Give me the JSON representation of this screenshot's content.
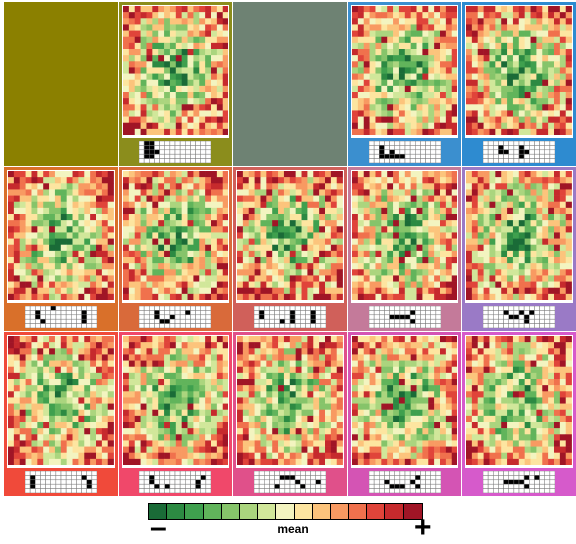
{
  "chart_data": {
    "type": "heatmap",
    "grid_rows": 3,
    "grid_cols": 5,
    "panels": [
      {
        "row": 0,
        "col": 0,
        "empty": true,
        "color": "#8b8000"
      },
      {
        "row": 0,
        "col": 1,
        "empty": false,
        "color": "#8b8d1c",
        "seed": 11,
        "selector": [
          [
            0,
            1
          ],
          [
            0,
            2
          ],
          [
            1,
            1
          ],
          [
            1,
            2
          ],
          [
            2,
            1
          ],
          [
            2,
            2
          ],
          [
            3,
            1
          ],
          [
            3,
            2
          ],
          [
            2,
            3
          ]
        ]
      },
      {
        "row": 0,
        "col": 2,
        "empty": true,
        "color": "#6e8273"
      },
      {
        "row": 0,
        "col": 3,
        "empty": false,
        "color": "#3b8fcf",
        "seed": 23,
        "selector": [
          [
            1,
            2
          ],
          [
            2,
            2
          ],
          [
            3,
            2
          ],
          [
            3,
            3
          ],
          [
            3,
            4
          ],
          [
            3,
            5
          ],
          [
            3,
            6
          ],
          [
            2,
            4
          ]
        ]
      },
      {
        "row": 0,
        "col": 4,
        "empty": false,
        "color": "#2e8bd0",
        "seed": 37,
        "selector": [
          [
            1,
            3
          ],
          [
            2,
            3
          ],
          [
            2,
            4
          ],
          [
            1,
            7
          ],
          [
            2,
            7
          ],
          [
            3,
            7
          ],
          [
            2,
            8
          ]
        ]
      },
      {
        "row": 1,
        "col": 0,
        "empty": false,
        "color": "#d9702a",
        "seed": 41,
        "selector": [
          [
            1,
            2
          ],
          [
            2,
            2
          ],
          [
            3,
            3
          ],
          [
            1,
            11
          ],
          [
            2,
            11
          ],
          [
            3,
            11
          ],
          [
            0,
            5
          ]
        ]
      },
      {
        "row": 1,
        "col": 1,
        "empty": false,
        "color": "#d96a3a",
        "seed": 53,
        "selector": [
          [
            1,
            3
          ],
          [
            2,
            3
          ],
          [
            3,
            4
          ],
          [
            3,
            5
          ],
          [
            2,
            6
          ],
          [
            1,
            9
          ]
        ]
      },
      {
        "row": 1,
        "col": 2,
        "empty": false,
        "color": "#d0605a",
        "seed": 67,
        "selector": [
          [
            1,
            1
          ],
          [
            2,
            1
          ],
          [
            3,
            5
          ],
          [
            1,
            7
          ],
          [
            2,
            7
          ],
          [
            3,
            7
          ],
          [
            1,
            11
          ],
          [
            2,
            11
          ],
          [
            3,
            11
          ]
        ]
      },
      {
        "row": 1,
        "col": 3,
        "empty": false,
        "color": "#c47a9a",
        "seed": 71,
        "selector": [
          [
            2,
            5
          ],
          [
            2,
            6
          ],
          [
            2,
            7
          ],
          [
            1,
            8
          ],
          [
            3,
            8
          ],
          [
            2,
            4
          ]
        ]
      },
      {
        "row": 1,
        "col": 4,
        "empty": false,
        "color": "#9a7ac6",
        "seed": 83,
        "selector": [
          [
            1,
            4
          ],
          [
            2,
            5
          ],
          [
            2,
            6
          ],
          [
            1,
            7
          ],
          [
            2,
            8
          ],
          [
            3,
            8
          ],
          [
            1,
            9
          ]
        ]
      },
      {
        "row": 2,
        "col": 0,
        "empty": false,
        "color": "#f04a3a",
        "seed": 97,
        "selector": [
          [
            1,
            1
          ],
          [
            2,
            1
          ],
          [
            3,
            1
          ],
          [
            2,
            12
          ],
          [
            3,
            12
          ],
          [
            1,
            11
          ]
        ]
      },
      {
        "row": 2,
        "col": 1,
        "empty": false,
        "color": "#f0486a",
        "seed": 101,
        "selector": [
          [
            1,
            2
          ],
          [
            2,
            2
          ],
          [
            3,
            3
          ],
          [
            3,
            5
          ],
          [
            2,
            11
          ],
          [
            3,
            11
          ],
          [
            1,
            12
          ]
        ]
      },
      {
        "row": 2,
        "col": 2,
        "empty": false,
        "color": "#e0508a",
        "seed": 113,
        "selector": [
          [
            1,
            5
          ],
          [
            1,
            6
          ],
          [
            1,
            7
          ],
          [
            2,
            8
          ],
          [
            3,
            4
          ],
          [
            3,
            9
          ],
          [
            2,
            12
          ]
        ]
      },
      {
        "row": 2,
        "col": 3,
        "empty": false,
        "color": "#d454b4",
        "seed": 127,
        "selector": [
          [
            2,
            3
          ],
          [
            3,
            4
          ],
          [
            3,
            5
          ],
          [
            3,
            6
          ],
          [
            2,
            8
          ],
          [
            1,
            9
          ],
          [
            3,
            9
          ]
        ]
      },
      {
        "row": 2,
        "col": 4,
        "empty": false,
        "color": "#d65acb",
        "seed": 131,
        "selector": [
          [
            2,
            4
          ],
          [
            2,
            5
          ],
          [
            2,
            6
          ],
          [
            2,
            7
          ],
          [
            1,
            8
          ],
          [
            3,
            8
          ],
          [
            1,
            10
          ]
        ]
      }
    ],
    "color_scale": [
      "#1a6b37",
      "#2c8a42",
      "#3fa04e",
      "#61b45b",
      "#86c46a",
      "#abd57e",
      "#d1e79a",
      "#f3f4c0",
      "#fde5a0",
      "#fcc47c",
      "#f89a62",
      "#f0714d",
      "#e0443a",
      "#c62a2d",
      "#a01526"
    ],
    "legend": {
      "min_label": "–",
      "caption": "mean",
      "max_label": "+"
    }
  }
}
